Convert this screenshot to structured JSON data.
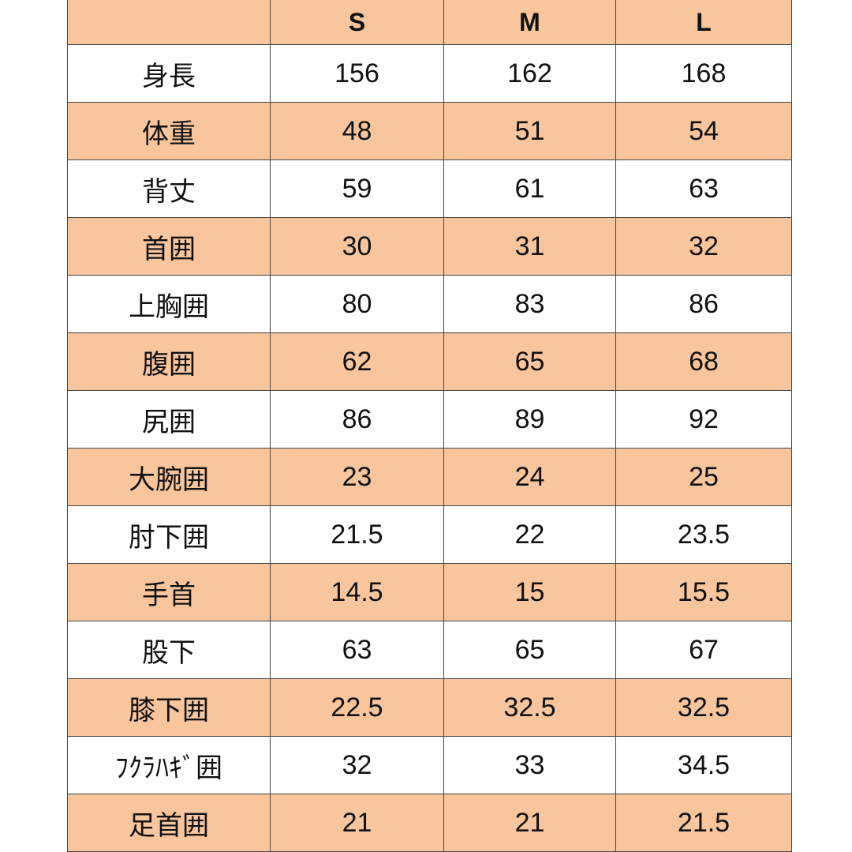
{
  "table": {
    "columns": [
      "S",
      "M",
      "L"
    ],
    "rows": [
      [
        "身長",
        "156",
        "162",
        "168"
      ],
      [
        "体重",
        "48",
        "51",
        "54"
      ],
      [
        "背丈",
        "59",
        "61",
        "63"
      ],
      [
        "首囲",
        "30",
        "31",
        "32"
      ],
      [
        "上胸囲",
        "80",
        "83",
        "86"
      ],
      [
        "腹囲",
        "62",
        "65",
        "68"
      ],
      [
        "尻囲",
        "86",
        "89",
        "92"
      ],
      [
        "大腕囲",
        "23",
        "24",
        "25"
      ],
      [
        "肘下囲",
        "21.5",
        "22",
        "23.5"
      ],
      [
        "手首",
        "14.5",
        "15",
        "15.5"
      ],
      [
        "股下",
        "63",
        "65",
        "67"
      ],
      [
        "膝下囲",
        "22.5",
        "32.5",
        "32.5"
      ],
      [
        "ﾌｸﾗﾊｷﾞ囲",
        "32",
        "33",
        "34.5"
      ],
      [
        "足首囲",
        "21",
        "21",
        "21.5"
      ]
    ]
  }
}
